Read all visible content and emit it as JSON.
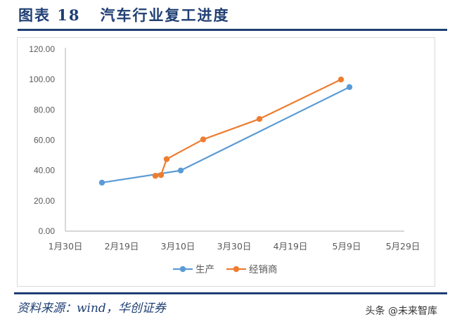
{
  "header": {
    "title": "图表 18   汽车行业复工进度"
  },
  "footer": {
    "source": "资料来源：wind，华创证券",
    "watermark": "头条 @未来智库"
  },
  "colors": {
    "brand": "#1f3f73",
    "series_production": "#5b9bd5",
    "series_dealer": "#ed7d31",
    "axis": "#bfbfbf",
    "tick_text": "#595959"
  },
  "chart_data": {
    "type": "line",
    "title": "汽车行业复工进度",
    "xlabel": "",
    "ylabel": "",
    "ylim": [
      0,
      120
    ],
    "yticks": [
      "0.00",
      "20.00",
      "40.00",
      "60.00",
      "80.00",
      "100.00",
      "120.00"
    ],
    "xticks": [
      "1月30日",
      "2月19日",
      "3月10日",
      "3月30日",
      "4月19日",
      "5月9日",
      "5月29日"
    ],
    "grid": false,
    "legend_position": "bottom",
    "series": [
      {
        "name": "生产",
        "color": "#5b9bd5",
        "x": [
          "2月12日",
          "3月11日",
          "5月10日"
        ],
        "values": [
          32,
          40,
          95
        ]
      },
      {
        "name": "经销商",
        "color": "#ed7d31",
        "x": [
          "3月2日",
          "3月4日",
          "3月6日",
          "3月19日",
          "4月8日",
          "5月7日"
        ],
        "values": [
          36.5,
          37,
          47.5,
          60.5,
          74,
          100
        ]
      }
    ]
  }
}
